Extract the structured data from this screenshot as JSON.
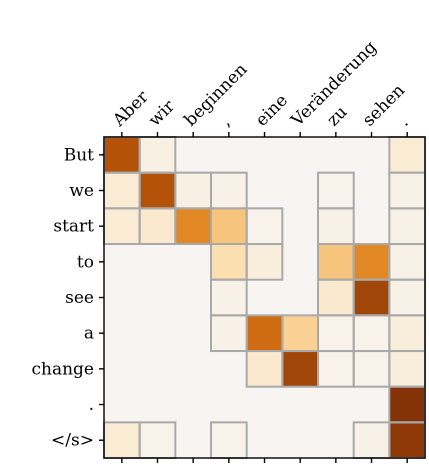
{
  "chart_data": {
    "type": "heatmap",
    "x_labels": [
      "Aber",
      "wir",
      "beginnen",
      ",",
      "eine",
      "Veränderung",
      "zu",
      "sehen",
      "."
    ],
    "y_labels": [
      "But",
      "we",
      "start",
      "to",
      "see",
      "a",
      "change",
      ".",
      "</s>"
    ],
    "value_range": [
      0,
      1
    ],
    "colormap": "white-to-brown (orange)",
    "values": [
      [
        0.85,
        0.04,
        0,
        0,
        0,
        0,
        0,
        0,
        0.08
      ],
      [
        0.08,
        0.85,
        0.04,
        0.03,
        0,
        0,
        0.02,
        0,
        0.03
      ],
      [
        0.08,
        0.1,
        0.65,
        0.3,
        0.02,
        0,
        0.03,
        0,
        0.03
      ],
      [
        0,
        0,
        0,
        0.18,
        0.06,
        0,
        0.3,
        0.65,
        0.03
      ],
      [
        0,
        0,
        0,
        0.03,
        0,
        0,
        0.1,
        0.9,
        0.03
      ],
      [
        0,
        0,
        0,
        0.03,
        0.75,
        0.25,
        0.02,
        0.02,
        0.06
      ],
      [
        0,
        0,
        0,
        0,
        0.1,
        0.9,
        0.02,
        0.02,
        0.06
      ],
      [
        0,
        0,
        0,
        0,
        0,
        0,
        0,
        0,
        0.98
      ],
      [
        0.08,
        0.02,
        0,
        0.02,
        0,
        0,
        0,
        0.03,
        0.95
      ]
    ],
    "outlined": [
      [
        1,
        1,
        0,
        0,
        0,
        0,
        0,
        0,
        1
      ],
      [
        1,
        1,
        1,
        1,
        0,
        0,
        1,
        0,
        1
      ],
      [
        1,
        1,
        1,
        1,
        1,
        0,
        1,
        0,
        1
      ],
      [
        0,
        0,
        0,
        1,
        1,
        0,
        1,
        1,
        1
      ],
      [
        0,
        0,
        0,
        1,
        0,
        0,
        1,
        1,
        1
      ],
      [
        0,
        0,
        0,
        1,
        1,
        1,
        1,
        1,
        1
      ],
      [
        0,
        0,
        0,
        0,
        1,
        1,
        1,
        1,
        1
      ],
      [
        0,
        0,
        0,
        0,
        0,
        0,
        0,
        0,
        1
      ],
      [
        1,
        1,
        0,
        1,
        0,
        0,
        0,
        1,
        1
      ]
    ]
  }
}
